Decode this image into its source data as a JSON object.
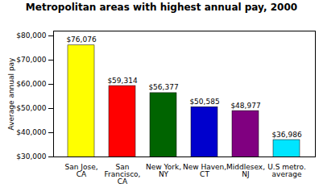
{
  "chart_data": {
    "type": "bar",
    "title": "Metropolitan areas with highest annual pay, 2000",
    "categories": [
      "San Jose,\nCA",
      "San\nFrancisco,\nCA",
      "New York,\nNY",
      "New Haven,\nCT",
      "Middlesex,\nNJ",
      "U.S metro.\naverage"
    ],
    "values": [
      76076,
      59314,
      56377,
      50585,
      48977,
      36986
    ],
    "value_labels": [
      "$76,076",
      "$59,314",
      "$56,377",
      "$50,585",
      "$48,977",
      "$36,986"
    ],
    "data_labels": true,
    "colors": [
      "#ffff00",
      "#ff0000",
      "#006400",
      "#0000cd",
      "#800080",
      "#00e5ff"
    ],
    "ylabel": "Average annual pay",
    "ylim": [
      30000,
      82000
    ],
    "yticks": [
      {
        "value": 30000,
        "label": "$30,000"
      },
      {
        "value": 40000,
        "label": "$40,000"
      },
      {
        "value": 50000,
        "label": "$50,000"
      },
      {
        "value": 60000,
        "label": "$60,000"
      },
      {
        "value": 70000,
        "label": "$70,000"
      },
      {
        "value": 80000,
        "label": "$80,000"
      }
    ],
    "grid": false
  }
}
